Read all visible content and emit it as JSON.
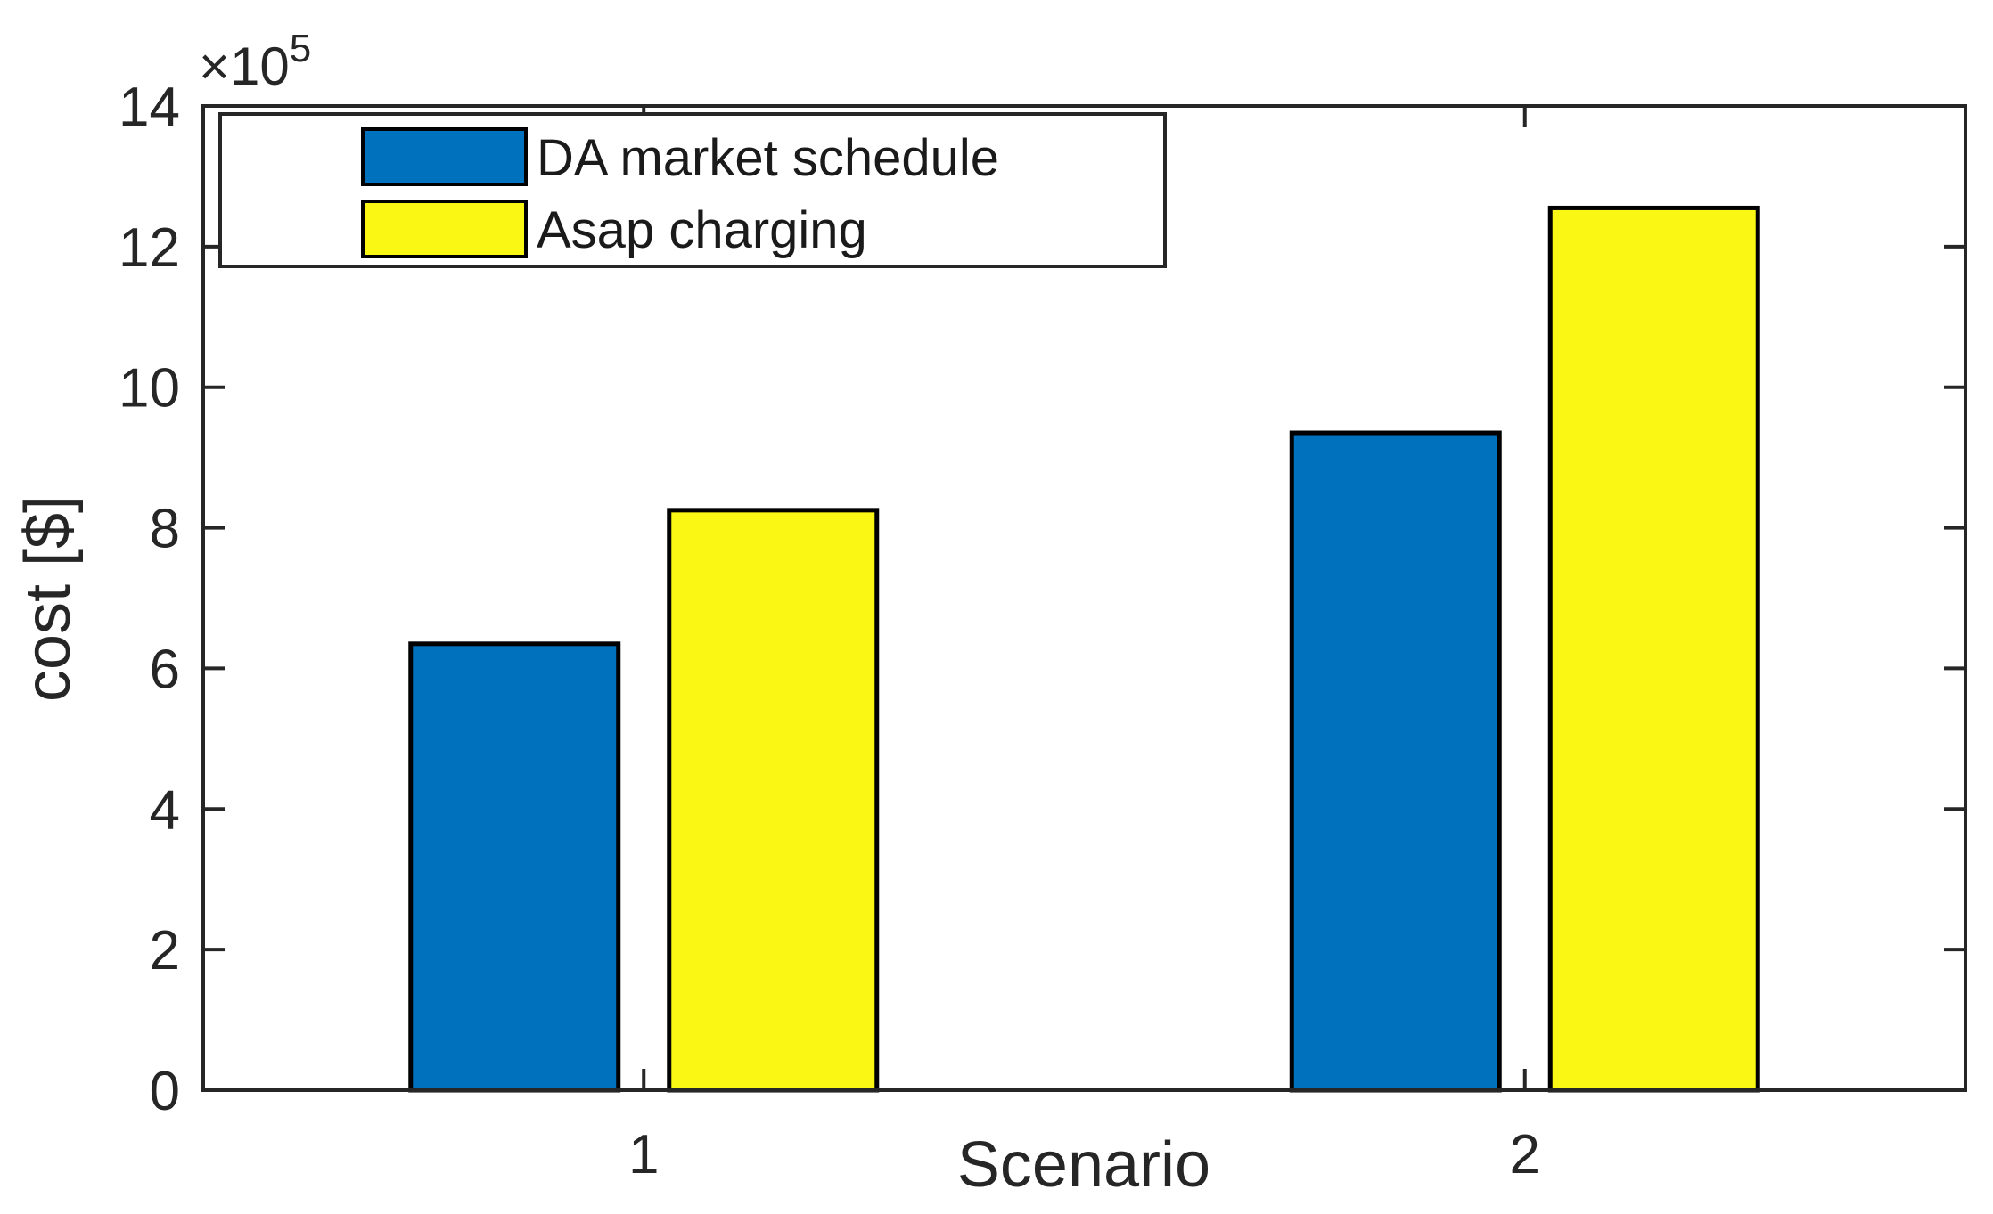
{
  "figure": {
    "background": "#ffffff"
  },
  "chart_data": {
    "type": "bar",
    "title": "",
    "xlabel": "Scenario",
    "ylabel": "cost [$]",
    "y_axis_multiplier": {
      "prefix": "×10",
      "exponent": "5"
    },
    "categories": [
      "1",
      "2"
    ],
    "series": [
      {
        "name": "DA market schedule",
        "color": "#0072BD",
        "values": [
          6.35,
          9.35
        ]
      },
      {
        "name": "Asap charging",
        "color": "#FBF714",
        "values": [
          8.25,
          12.55
        ]
      }
    ],
    "ylim": [
      0,
      14
    ],
    "yticks": [
      0,
      2,
      4,
      6,
      8,
      10,
      12,
      14
    ],
    "grid": false,
    "legend": {
      "position": "top-left",
      "entries": [
        "DA market schedule",
        "Asap charging"
      ]
    },
    "axis_color": "#262626",
    "bar_edge_color": "#000000",
    "background": "#ffffff"
  }
}
